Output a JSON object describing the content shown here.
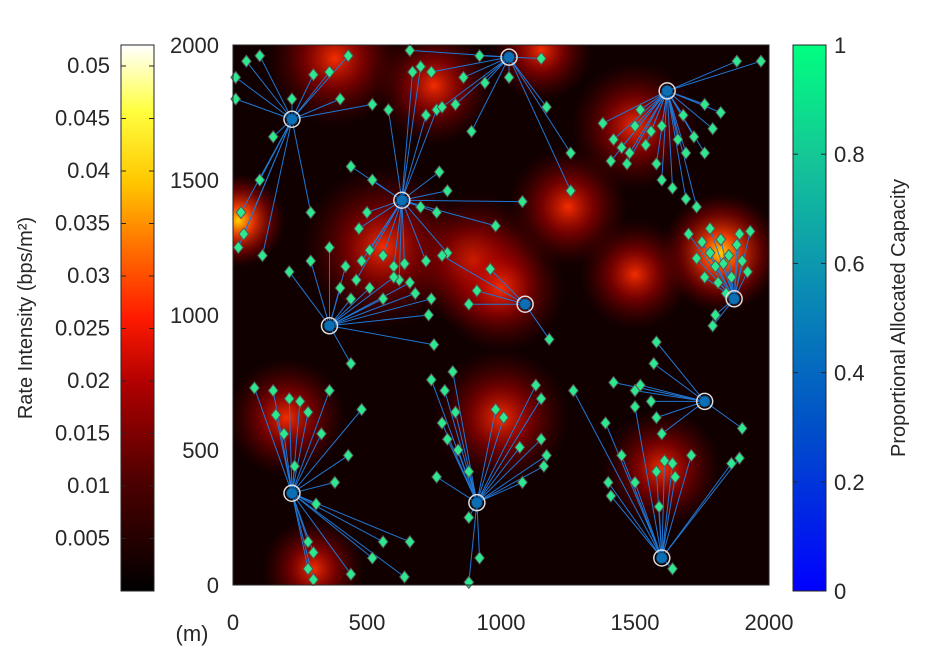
{
  "colors": {
    "link": "#1f77d4",
    "marker_fill": "#2ee890",
    "bs_fill": "#0a6fb5",
    "heat_low": "#000000",
    "heat_mid": "#c00000",
    "heat_high": "#ffff40"
  },
  "chart_data": {
    "type": "scatter",
    "xlim": [
      0,
      2000
    ],
    "ylim": [
      0,
      2000
    ],
    "x_ticks": [
      "0",
      "500",
      "1000",
      "1500",
      "2000"
    ],
    "y_ticks": [
      "0",
      "500",
      "1000",
      "1500",
      "2000"
    ],
    "unit_label": "(m)",
    "left_colorbar": {
      "label": "Rate Intensity (bps/m²)",
      "range": [
        0,
        0.052
      ],
      "ticks": [
        "0.005",
        "0.01",
        "0.015",
        "0.02",
        "0.025",
        "0.03",
        "0.035",
        "0.04",
        "0.045",
        "0.05"
      ]
    },
    "right_colorbar": {
      "label": "Proportional Allocated Capacity",
      "range": [
        0,
        1
      ],
      "ticks": [
        "0",
        "0.2",
        "0.4",
        "0.6",
        "0.8",
        "1"
      ]
    },
    "base_stations": [
      {
        "x": 220,
        "y": 1725
      },
      {
        "x": 630,
        "y": 1425
      },
      {
        "x": 1030,
        "y": 1955
      },
      {
        "x": 1620,
        "y": 1830
      },
      {
        "x": 360,
        "y": 960
      },
      {
        "x": 1090,
        "y": 1040
      },
      {
        "x": 1870,
        "y": 1060
      },
      {
        "x": 1760,
        "y": 680
      },
      {
        "x": 220,
        "y": 340
      },
      {
        "x": 910,
        "y": 305
      },
      {
        "x": 1600,
        "y": 100
      }
    ],
    "users": [
      [
        0,
        10,
        1880
      ],
      [
        0,
        10,
        1800
      ],
      [
        0,
        50,
        1940
      ],
      [
        0,
        100,
        1960
      ],
      [
        0,
        220,
        1800
      ],
      [
        0,
        150,
        1660
      ],
      [
        0,
        100,
        1500
      ],
      [
        0,
        30,
        1380
      ],
      [
        0,
        40,
        1300
      ],
      [
        0,
        20,
        1250
      ],
      [
        0,
        110,
        1220
      ],
      [
        0,
        290,
        1380
      ],
      [
        0,
        300,
        1890
      ],
      [
        0,
        360,
        1900
      ],
      [
        0,
        400,
        1800
      ],
      [
        0,
        430,
        1960
      ],
      [
        0,
        520,
        1780
      ],
      [
        1,
        440,
        1550
      ],
      [
        1,
        520,
        1500
      ],
      [
        1,
        500,
        1380
      ],
      [
        1,
        470,
        1320
      ],
      [
        1,
        510,
        1240
      ],
      [
        1,
        560,
        1220
      ],
      [
        1,
        600,
        1180
      ],
      [
        1,
        620,
        1130
      ],
      [
        1,
        460,
        1130
      ],
      [
        1,
        480,
        1200
      ],
      [
        1,
        640,
        1190
      ],
      [
        1,
        700,
        1400
      ],
      [
        1,
        800,
        1460
      ],
      [
        1,
        760,
        1380
      ],
      [
        1,
        980,
        1330
      ],
      [
        1,
        1080,
        1420
      ],
      [
        1,
        580,
        1760
      ],
      [
        1,
        670,
        1900
      ],
      [
        1,
        700,
        1920
      ],
      [
        1,
        720,
        1740
      ],
      [
        1,
        760,
        1760
      ],
      [
        1,
        770,
        1530
      ],
      [
        1,
        720,
        1200
      ],
      [
        1,
        800,
        1230
      ],
      [
        2,
        660,
        1980
      ],
      [
        2,
        740,
        1900
      ],
      [
        2,
        860,
        1880
      ],
      [
        2,
        920,
        1960
      ],
      [
        2,
        940,
        1860
      ],
      [
        2,
        1030,
        1880
      ],
      [
        2,
        1150,
        1950
      ],
      [
        2,
        780,
        1770
      ],
      [
        2,
        830,
        1780
      ],
      [
        2,
        1170,
        1770
      ],
      [
        2,
        1260,
        1600
      ],
      [
        2,
        1260,
        1460
      ],
      [
        2,
        890,
        1680
      ],
      [
        3,
        1380,
        1710
      ],
      [
        3,
        1420,
        1650
      ],
      [
        3,
        1450,
        1620
      ],
      [
        3,
        1470,
        1560
      ],
      [
        3,
        1500,
        1700
      ],
      [
        3,
        1520,
        1760
      ],
      [
        3,
        1560,
        1680
      ],
      [
        3,
        1540,
        1630
      ],
      [
        3,
        1580,
        1560
      ],
      [
        3,
        1600,
        1700
      ],
      [
        3,
        1660,
        1650
      ],
      [
        3,
        1690,
        1600
      ],
      [
        3,
        1720,
        1660
      ],
      [
        3,
        1760,
        1600
      ],
      [
        3,
        1790,
        1690
      ],
      [
        3,
        1820,
        1750
      ],
      [
        3,
        1760,
        1780
      ],
      [
        3,
        1680,
        1740
      ],
      [
        3,
        1880,
        1940
      ],
      [
        3,
        1970,
        1940
      ],
      [
        3,
        1600,
        1500
      ],
      [
        3,
        1640,
        1470
      ],
      [
        3,
        1480,
        1600
      ],
      [
        3,
        1410,
        1570
      ],
      [
        3,
        1690,
        1430
      ],
      [
        3,
        1730,
        1400
      ],
      [
        4,
        210,
        1160
      ],
      [
        4,
        290,
        1200
      ],
      [
        4,
        360,
        1250
      ],
      [
        4,
        420,
        1180
      ],
      [
        4,
        400,
        1100
      ],
      [
        4,
        440,
        1060
      ],
      [
        4,
        560,
        1060
      ],
      [
        4,
        510,
        1100
      ],
      [
        4,
        660,
        1120
      ],
      [
        4,
        740,
        1060
      ],
      [
        4,
        730,
        1000
      ],
      [
        4,
        750,
        890
      ],
      [
        4,
        440,
        820
      ],
      [
        4,
        680,
        1080
      ],
      [
        4,
        600,
        1140
      ],
      [
        5,
        910,
        1090
      ],
      [
        5,
        1180,
        910
      ],
      [
        5,
        780,
        1220
      ],
      [
        5,
        960,
        1170
      ],
      [
        5,
        880,
        1040
      ],
      [
        6,
        1700,
        1300
      ],
      [
        6,
        1750,
        1270
      ],
      [
        6,
        1780,
        1230
      ],
      [
        6,
        1800,
        1180
      ],
      [
        6,
        1820,
        1280
      ],
      [
        6,
        1850,
        1220
      ],
      [
        6,
        1880,
        1260
      ],
      [
        6,
        1900,
        1200
      ],
      [
        6,
        1920,
        1160
      ],
      [
        6,
        1760,
        1140
      ],
      [
        6,
        1810,
        1120
      ],
      [
        6,
        1830,
        1190
      ],
      [
        6,
        1860,
        1140
      ],
      [
        6,
        1890,
        1300
      ],
      [
        6,
        1930,
        1310
      ],
      [
        6,
        1780,
        1320
      ],
      [
        6,
        1730,
        1210
      ],
      [
        6,
        1840,
        1080
      ],
      [
        6,
        1800,
        1000
      ],
      [
        6,
        1790,
        960
      ],
      [
        7,
        1570,
        820
      ],
      [
        7,
        1500,
        720
      ],
      [
        7,
        1560,
        680
      ],
      [
        7,
        1580,
        620
      ],
      [
        7,
        1600,
        560
      ],
      [
        7,
        1420,
        750
      ],
      [
        7,
        1580,
        900
      ],
      [
        7,
        1900,
        580
      ],
      [
        7,
        1520,
        740
      ],
      [
        8,
        80,
        730
      ],
      [
        8,
        150,
        720
      ],
      [
        8,
        210,
        690
      ],
      [
        8,
        250,
        680
      ],
      [
        8,
        160,
        630
      ],
      [
        8,
        280,
        640
      ],
      [
        8,
        190,
        560
      ],
      [
        8,
        230,
        440
      ],
      [
        8,
        330,
        560
      ],
      [
        8,
        360,
        720
      ],
      [
        8,
        480,
        650
      ],
      [
        8,
        430,
        480
      ],
      [
        8,
        380,
        380
      ],
      [
        8,
        310,
        300
      ],
      [
        8,
        280,
        160
      ],
      [
        8,
        300,
        120
      ],
      [
        8,
        280,
        60
      ],
      [
        8,
        440,
        40
      ],
      [
        8,
        520,
        100
      ],
      [
        8,
        560,
        160
      ],
      [
        8,
        660,
        160
      ],
      [
        8,
        640,
        30
      ],
      [
        8,
        300,
        20
      ],
      [
        9,
        740,
        760
      ],
      [
        9,
        790,
        720
      ],
      [
        9,
        820,
        790
      ],
      [
        9,
        780,
        600
      ],
      [
        9,
        800,
        540
      ],
      [
        9,
        840,
        500
      ],
      [
        9,
        880,
        420
      ],
      [
        9,
        760,
        400
      ],
      [
        9,
        880,
        250
      ],
      [
        9,
        980,
        650
      ],
      [
        9,
        1010,
        620
      ],
      [
        9,
        1070,
        510
      ],
      [
        9,
        1150,
        540
      ],
      [
        9,
        1170,
        480
      ],
      [
        9,
        1160,
        440
      ],
      [
        9,
        1080,
        380
      ],
      [
        9,
        920,
        100
      ],
      [
        9,
        880,
        10
      ],
      [
        9,
        830,
        640
      ],
      [
        9,
        1150,
        690
      ],
      [
        9,
        1130,
        740
      ],
      [
        10,
        1270,
        720
      ],
      [
        10,
        1390,
        600
      ],
      [
        10,
        1450,
        480
      ],
      [
        10,
        1400,
        380
      ],
      [
        10,
        1410,
        330
      ],
      [
        10,
        1500,
        380
      ],
      [
        10,
        1580,
        420
      ],
      [
        10,
        1610,
        460
      ],
      [
        10,
        1640,
        450
      ],
      [
        10,
        1710,
        480
      ],
      [
        10,
        1650,
        400
      ],
      [
        10,
        1860,
        450
      ],
      [
        10,
        1890,
        470
      ],
      [
        10,
        1590,
        290
      ],
      [
        10,
        1640,
        60
      ],
      [
        10,
        1500,
        660
      ]
    ]
  }
}
